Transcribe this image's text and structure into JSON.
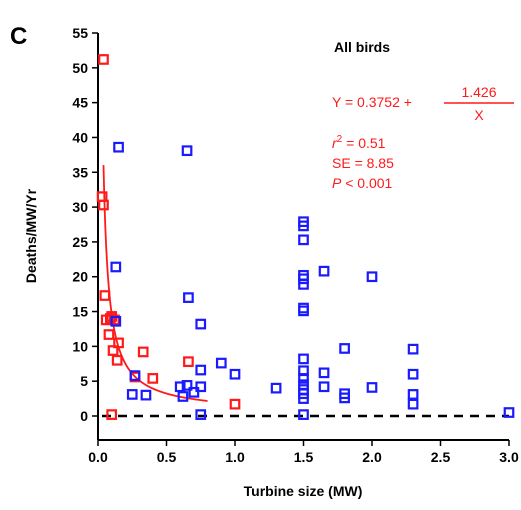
{
  "chart_data": {
    "type": "scatter",
    "panel_label": "C",
    "title": "All birds",
    "xlabel": "Turbine size (MW)",
    "ylabel": "Deaths/MW/Yr",
    "xlim": [
      0,
      3
    ],
    "ylim": [
      0,
      55
    ],
    "x_ticks": [
      "0.0",
      "0.5",
      "1.0",
      "1.5",
      "2.0",
      "2.5",
      "3.0"
    ],
    "y_ticks": [
      "0",
      "5",
      "10",
      "15",
      "20",
      "25",
      "30",
      "35",
      "40",
      "45",
      "50",
      "55"
    ],
    "reference_line": {
      "y": 0,
      "style": "dashed",
      "color": "#000000"
    },
    "series": [
      {
        "color": "#ff1a1a",
        "marker": "open-square",
        "points": [
          [
            0.04,
            51.2
          ],
          [
            0.03,
            31.5
          ],
          [
            0.04,
            30.3
          ],
          [
            0.05,
            17.3
          ],
          [
            0.06,
            13.8
          ],
          [
            0.08,
            11.7
          ],
          [
            0.09,
            14.0
          ],
          [
            0.1,
            14.3
          ],
          [
            0.11,
            9.4
          ],
          [
            0.12,
            13.8
          ],
          [
            0.14,
            8.0
          ],
          [
            0.15,
            10.5
          ],
          [
            0.1,
            0.2
          ],
          [
            0.27,
            5.6
          ],
          [
            0.33,
            9.2
          ],
          [
            0.4,
            5.4
          ],
          [
            0.66,
            7.8
          ],
          [
            1.0,
            1.7
          ]
        ]
      },
      {
        "color": "#1a1aff",
        "marker": "open-square",
        "points": [
          [
            0.15,
            38.6
          ],
          [
            0.13,
            21.4
          ],
          [
            0.13,
            13.6
          ],
          [
            0.25,
            3.1
          ],
          [
            0.27,
            5.8
          ],
          [
            0.35,
            3.0
          ],
          [
            0.6,
            4.2
          ],
          [
            0.62,
            2.8
          ],
          [
            0.65,
            38.1
          ],
          [
            0.66,
            17.0
          ],
          [
            0.65,
            4.4
          ],
          [
            0.7,
            3.4
          ],
          [
            0.75,
            13.2
          ],
          [
            0.75,
            6.6
          ],
          [
            0.75,
            4.2
          ],
          [
            0.75,
            0.2
          ],
          [
            0.9,
            7.6
          ],
          [
            1.0,
            6.0
          ],
          [
            1.3,
            4.0
          ],
          [
            1.5,
            27.9
          ],
          [
            1.5,
            27.3
          ],
          [
            1.5,
            25.3
          ],
          [
            1.5,
            20.2
          ],
          [
            1.5,
            19.7
          ],
          [
            1.5,
            18.9
          ],
          [
            1.5,
            15.5
          ],
          [
            1.5,
            15.1
          ],
          [
            1.5,
            8.2
          ],
          [
            1.5,
            6.5
          ],
          [
            1.5,
            5.4
          ],
          [
            1.5,
            4.5
          ],
          [
            1.5,
            3.8
          ],
          [
            1.5,
            3.2
          ],
          [
            1.5,
            2.5
          ],
          [
            1.5,
            0.2
          ],
          [
            1.65,
            20.8
          ],
          [
            1.65,
            6.2
          ],
          [
            1.65,
            4.2
          ],
          [
            1.8,
            9.7
          ],
          [
            1.8,
            3.2
          ],
          [
            1.8,
            2.6
          ],
          [
            2.0,
            20.0
          ],
          [
            2.0,
            4.1
          ],
          [
            2.3,
            9.6
          ],
          [
            2.3,
            6.0
          ],
          [
            2.3,
            3.1
          ],
          [
            2.3,
            1.7
          ],
          [
            3.0,
            0.5
          ]
        ]
      }
    ],
    "fit": {
      "color": "#ff1a1a",
      "intercept": 0.3752,
      "slope": 1.426,
      "x_range": [
        0.04,
        0.8
      ]
    },
    "annotations": {
      "equation_left": "Y = 0.3752 +",
      "equation_numerator": "1.426",
      "equation_denominator": "X",
      "r2_prefix": "r",
      "r2_superscript": "2",
      "r2_value": " = 0.51",
      "se": "SE = 8.85",
      "p_prefix": "P",
      "p_value": " < 0.001"
    }
  }
}
